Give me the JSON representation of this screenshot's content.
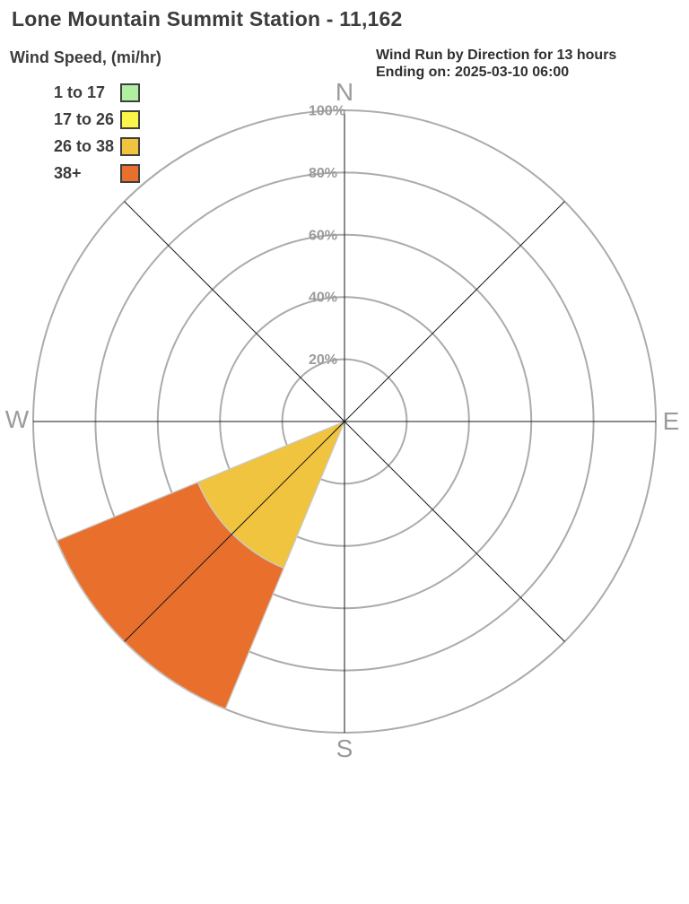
{
  "title": "Lone Mountain Summit Station - 11,162",
  "legend": {
    "title": "Wind Speed, (mi/hr)",
    "items": [
      {
        "label": "1 to 17",
        "color": "#B0EFA2"
      },
      {
        "label": "17 to 26",
        "color": "#FAF548"
      },
      {
        "label": "26 to 38",
        "color": "#F0C43E"
      },
      {
        "label": "38+",
        "color": "#E8702C"
      }
    ]
  },
  "header_right": {
    "line1": "Wind Run by Direction for 13 hours",
    "line2": "Ending on: 2025-03-10 06:00"
  },
  "chart_data": {
    "type": "bar",
    "variant": "wind-rose-polar-stacked",
    "title": "Wind Run by Direction for 13 hours Ending on: 2025-03-10 06:00",
    "units": "percent of wind run",
    "categories": [
      "N",
      "NE",
      "E",
      "SE",
      "S",
      "SW",
      "W",
      "NW"
    ],
    "series": [
      {
        "name": "1 to 17",
        "color": "#B0EFA2",
        "values": [
          0,
          0,
          0,
          0,
          0,
          0,
          0,
          0
        ]
      },
      {
        "name": "17 to 26",
        "color": "#FAF548",
        "values": [
          0,
          0,
          0,
          0,
          0,
          0,
          0,
          0
        ]
      },
      {
        "name": "26 to 38",
        "color": "#F0C43E",
        "values": [
          0,
          0,
          0,
          0,
          0,
          51,
          0,
          0
        ]
      },
      {
        "name": "38+",
        "color": "#E8702C",
        "values": [
          0,
          0,
          0,
          0,
          0,
          49,
          0,
          0
        ]
      }
    ],
    "rlim": [
      0,
      100
    ],
    "radial_ticks": [
      20,
      40,
      60,
      80,
      100
    ],
    "radial_tick_labels": [
      "20%",
      "40%",
      "60%",
      "80%",
      "100%"
    ],
    "compass_labels": [
      "N",
      "E",
      "S",
      "W"
    ],
    "sector_width_deg": 45,
    "grid": true,
    "legend_position": "top-left",
    "colors": {
      "grid": "#ABABAB",
      "spoke": "#1A1A1A",
      "tick_label": "#9B9B9B",
      "compass_label": "#9B9B9B",
      "petal_outline": "#C9C9C9"
    }
  }
}
